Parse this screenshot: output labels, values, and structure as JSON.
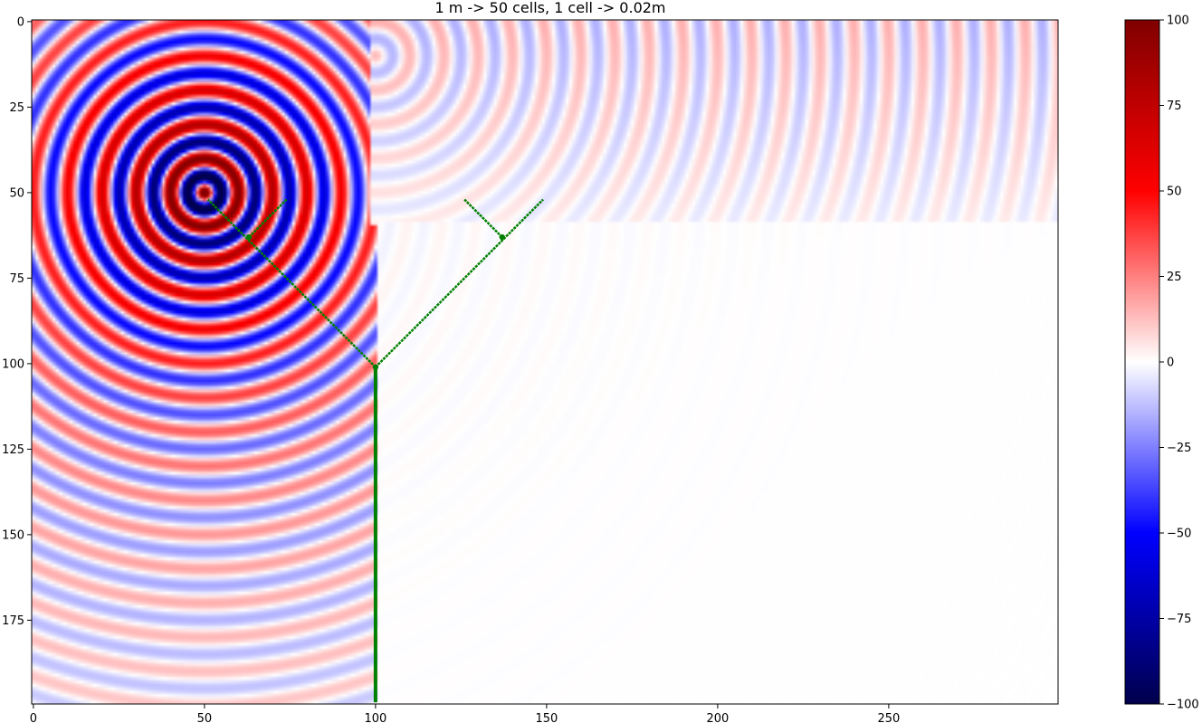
{
  "chart_data": {
    "type": "heatmap",
    "title": "1 m -> 50 cells, 1 cell -> 0.02m",
    "grid": {
      "cols": 300,
      "rows": 200
    },
    "x_axis": {
      "range": [
        0,
        299
      ],
      "ticks": [
        0,
        50,
        100,
        150,
        200,
        250
      ],
      "tick_labels": [
        "0",
        "50",
        "100",
        "150",
        "200",
        "250"
      ]
    },
    "y_axis": {
      "range": [
        0,
        199
      ],
      "inverted": true,
      "ticks": [
        0,
        25,
        50,
        75,
        100,
        125,
        150,
        175
      ],
      "tick_labels": [
        "0",
        "25",
        "50",
        "75",
        "100",
        "125",
        "150",
        "175"
      ]
    },
    "colorbar": {
      "colormap": "seismic",
      "range": [
        -100,
        100
      ],
      "ticks": [
        100,
        75,
        50,
        25,
        0,
        -25,
        -50,
        -75,
        -100
      ],
      "tick_labels": [
        "100",
        "75",
        "50",
        "25",
        "0",
        "−25",
        "−50",
        "−75",
        "−100"
      ],
      "colors": [
        "#00004c",
        "#0000ff",
        "#ffffff",
        "#ff0000",
        "#800000"
      ]
    },
    "source": {
      "x": 50,
      "y": 50
    },
    "wall": {
      "color": "#007f00",
      "segments": [
        {
          "from": [
            100,
            199
          ],
          "to": [
            100,
            101
          ]
        },
        {
          "from": [
            100,
            101
          ],
          "to": [
            51,
            52
          ]
        },
        {
          "from": [
            100,
            101
          ],
          "to": [
            149,
            52
          ]
        },
        {
          "from": [
            63,
            63
          ],
          "to": [
            74,
            52
          ]
        },
        {
          "from": [
            137,
            63
          ],
          "to": [
            126,
            52
          ]
        }
      ],
      "junctions": [
        [
          63,
          63
        ],
        [
          137,
          63
        ],
        [
          100,
          101
        ]
      ]
    }
  }
}
